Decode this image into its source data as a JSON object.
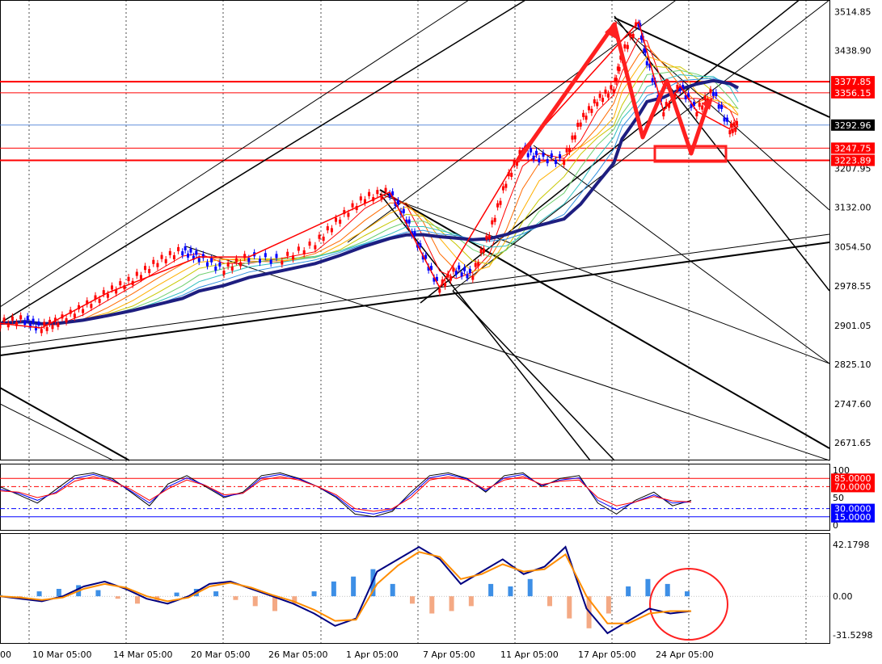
{
  "chart_data": [
    {
      "type": "line",
      "panel": "price",
      "title": "",
      "y_axis_ticks": [
        "3514.85",
        "3438.90",
        "3207.95",
        "3132.00",
        "3054.50",
        "2978.55",
        "2901.05",
        "2825.10",
        "2747.60",
        "2671.65"
      ],
      "x_tick_labels": [
        "00",
        "10 Mar 05:00",
        "14 Mar 05:00",
        "20 Mar 05:00",
        "26 Mar 05:00",
        "1 Apr 05:00",
        "7 Apr 05:00",
        "11 Apr 05:00",
        "17 Apr 05:00",
        "24 Apr 05:00"
      ],
      "ylim": [
        2640,
        3525
      ],
      "current_price": {
        "label": "3292.96",
        "value": 3292.96
      },
      "horizontal_levels": [
        {
          "label": "3377.85",
          "value": 3377.85,
          "color": "#ff0000"
        },
        {
          "label": "3356.15",
          "value": 3356.15,
          "color": "#ff0000"
        },
        {
          "label": "3247.75",
          "value": 3247.75,
          "color": "#ff0000"
        },
        {
          "label": "3223.89",
          "value": 3223.89,
          "color": "#ff0000"
        }
      ],
      "close_series": [
        {
          "t": 0,
          "v": 2905
        },
        {
          "t": 0.03,
          "v": 2912
        },
        {
          "t": 0.05,
          "v": 2896
        },
        {
          "t": 0.07,
          "v": 2908
        },
        {
          "t": 0.1,
          "v": 2935
        },
        {
          "t": 0.13,
          "v": 2965
        },
        {
          "t": 0.16,
          "v": 2990
        },
        {
          "t": 0.19,
          "v": 3025
        },
        {
          "t": 0.22,
          "v": 3048
        },
        {
          "t": 0.24,
          "v": 3035
        },
        {
          "t": 0.27,
          "v": 3010
        },
        {
          "t": 0.3,
          "v": 3035
        },
        {
          "t": 0.34,
          "v": 3030
        },
        {
          "t": 0.38,
          "v": 3060
        },
        {
          "t": 0.41,
          "v": 3110
        },
        {
          "t": 0.44,
          "v": 3150
        },
        {
          "t": 0.47,
          "v": 3162
        },
        {
          "t": 0.49,
          "v": 3110
        },
        {
          "t": 0.51,
          "v": 3040
        },
        {
          "t": 0.53,
          "v": 2975
        },
        {
          "t": 0.55,
          "v": 3010
        },
        {
          "t": 0.57,
          "v": 3000
        },
        {
          "t": 0.59,
          "v": 3080
        },
        {
          "t": 0.61,
          "v": 3180
        },
        {
          "t": 0.63,
          "v": 3245
        },
        {
          "t": 0.65,
          "v": 3230
        },
        {
          "t": 0.68,
          "v": 3225
        },
        {
          "t": 0.7,
          "v": 3300
        },
        {
          "t": 0.72,
          "v": 3340
        },
        {
          "t": 0.74,
          "v": 3365
        },
        {
          "t": 0.75,
          "v": 3430
        },
        {
          "t": 0.77,
          "v": 3495
        },
        {
          "t": 0.78,
          "v": 3420
        },
        {
          "t": 0.8,
          "v": 3320
        },
        {
          "t": 0.82,
          "v": 3370
        },
        {
          "t": 0.84,
          "v": 3320
        },
        {
          "t": 0.86,
          "v": 3360
        },
        {
          "t": 0.88,
          "v": 3285
        },
        {
          "t": 0.89,
          "v": 3292
        }
      ],
      "annotation": "red hand-drawn zigzag arrows and a red rectangle near 3223.89-3247.75"
    },
    {
      "type": "line",
      "panel": "stochastic",
      "y_axis_ticks": [
        "100",
        "50",
        "0"
      ],
      "levels": [
        {
          "label": "85.0000",
          "value": 85,
          "color": "#ff0000"
        },
        {
          "label": "70.0000",
          "value": 70,
          "color": "#ff0000"
        },
        {
          "label": "30.0000",
          "value": 30,
          "color": "#0000ff"
        },
        {
          "label": "15.0000",
          "value": 15,
          "color": "#0000ff"
        }
      ],
      "ylim": [
        0,
        105
      ],
      "series": [
        {
          "color": "#000000",
          "values": [
            70,
            55,
            40,
            65,
            90,
            95,
            85,
            60,
            35,
            75,
            90,
            70,
            50,
            60,
            90,
            95,
            85,
            70,
            50,
            20,
            15,
            25,
            60,
            90,
            95,
            85,
            60,
            90,
            95,
            70,
            85,
            90,
            40,
            20,
            45,
            60,
            35,
            45
          ]
        },
        {
          "color": "#0000ff",
          "values": [
            65,
            58,
            45,
            60,
            85,
            92,
            82,
            62,
            40,
            70,
            86,
            72,
            52,
            58,
            86,
            92,
            84,
            70,
            52,
            25,
            20,
            28,
            55,
            86,
            92,
            84,
            62,
            86,
            92,
            72,
            82,
            86,
            45,
            28,
            42,
            55,
            40,
            42
          ]
        },
        {
          "color": "#ff0000",
          "values": [
            62,
            60,
            50,
            58,
            80,
            88,
            80,
            65,
            45,
            66,
            82,
            72,
            55,
            58,
            82,
            88,
            82,
            70,
            55,
            30,
            25,
            30,
            50,
            82,
            88,
            82,
            65,
            82,
            88,
            74,
            80,
            82,
            50,
            35,
            42,
            52,
            44,
            42
          ]
        }
      ]
    },
    {
      "type": "line",
      "panel": "macd",
      "y_axis_ticks": [
        "42.1798",
        "0.00",
        "-31.5298"
      ],
      "ylim": [
        -34,
        46
      ],
      "histogram": [
        1,
        -2,
        4,
        6,
        9,
        5,
        -2,
        -6,
        -4,
        3,
        6,
        4,
        -3,
        -8,
        -12,
        -6,
        4,
        12,
        16,
        22,
        10,
        -6,
        -14,
        -12,
        -8,
        10,
        8,
        14,
        -8,
        -18,
        -26,
        -14,
        8,
        14,
        10,
        4
      ],
      "series": [
        {
          "color": "#000080",
          "values": [
            0,
            -2,
            -4,
            0,
            8,
            12,
            6,
            -2,
            -6,
            0,
            10,
            12,
            6,
            0,
            -6,
            -14,
            -24,
            -18,
            20,
            30,
            40,
            30,
            10,
            20,
            30,
            18,
            24,
            40,
            -10,
            -30,
            -20,
            -10,
            -14,
            -12
          ]
        },
        {
          "color": "#ff8c00",
          "values": [
            0,
            -1,
            -3,
            -1,
            6,
            10,
            7,
            0,
            -4,
            -1,
            8,
            11,
            7,
            1,
            -4,
            -11,
            -20,
            -19,
            10,
            25,
            36,
            32,
            14,
            18,
            26,
            20,
            22,
            34,
            0,
            -22,
            -22,
            -14,
            -12,
            -12
          ]
        }
      ]
    }
  ],
  "colors": {
    "bull": "#ff0000",
    "bear": "#0000ff",
    "axis_text": "#000000"
  }
}
